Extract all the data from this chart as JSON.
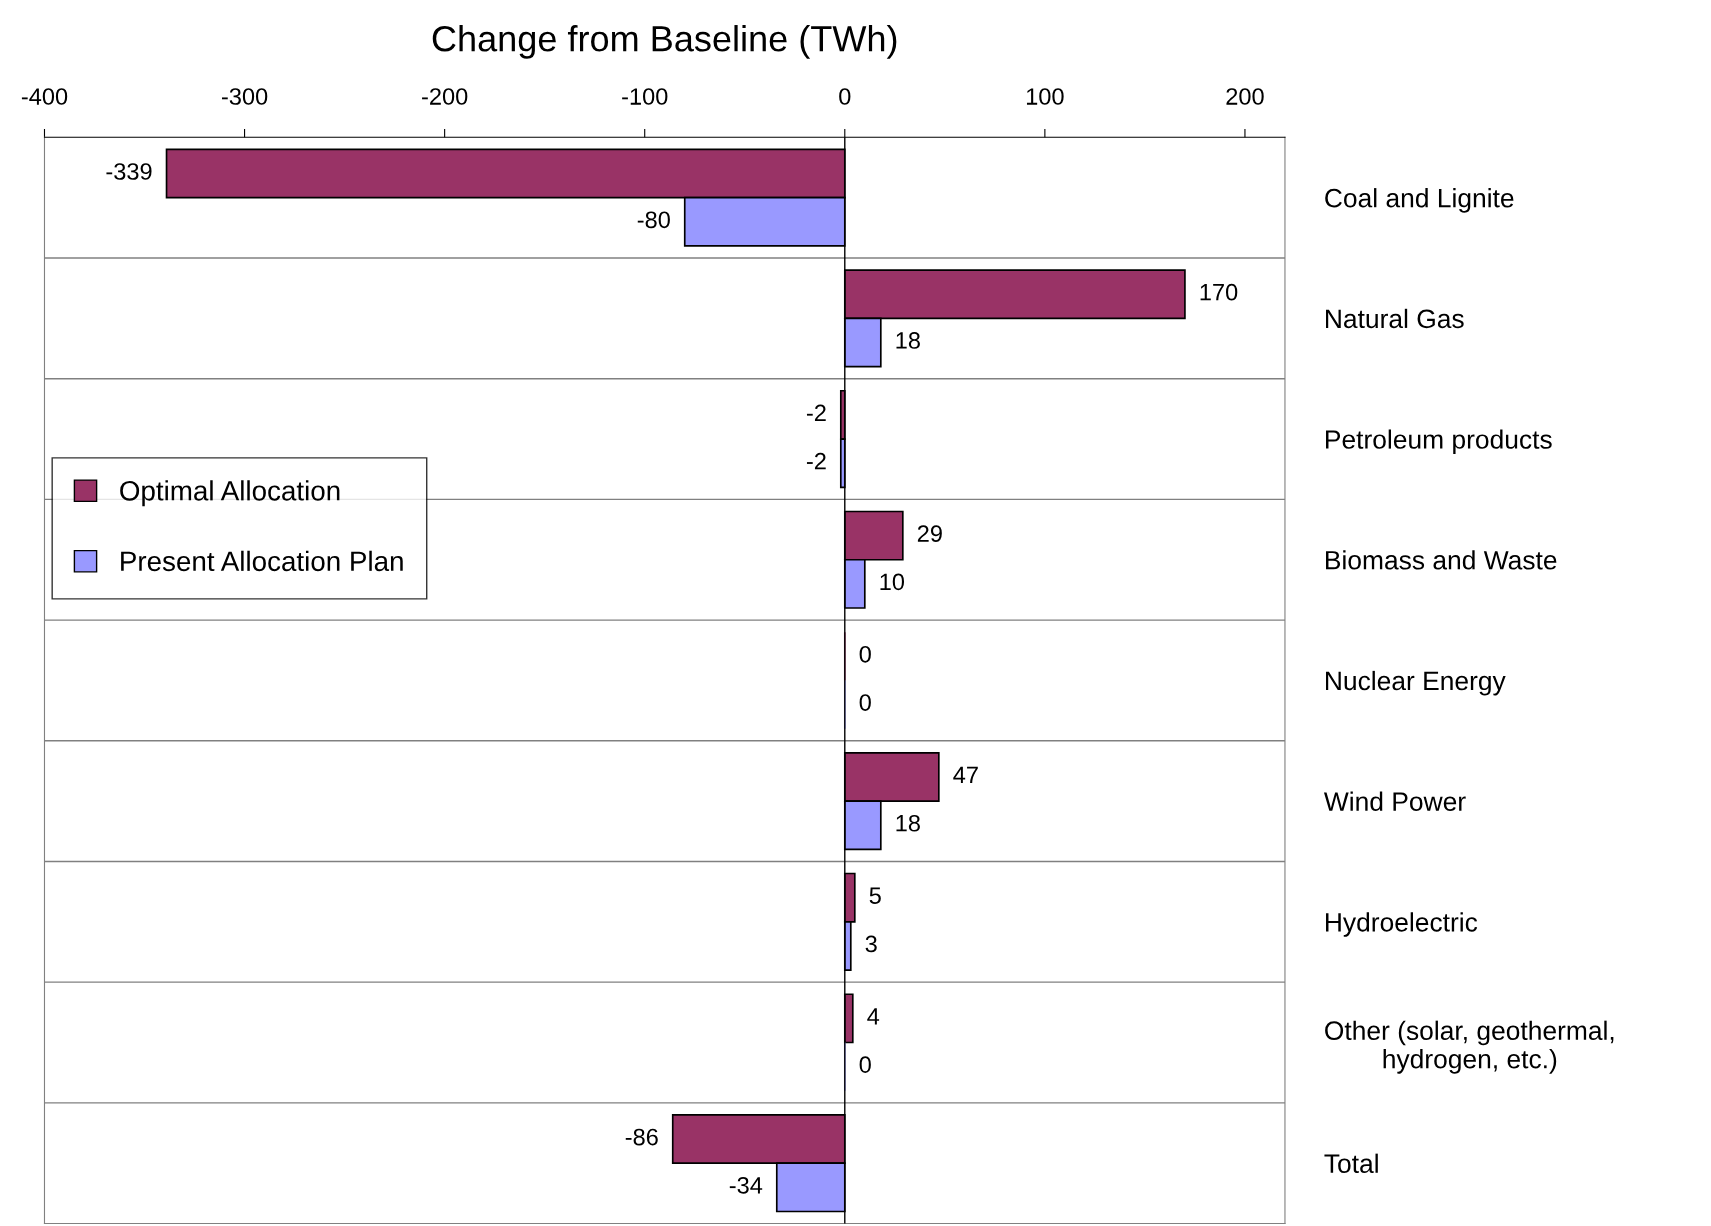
{
  "chart_data": {
    "type": "bar",
    "orientation": "horizontal",
    "title": "Change from Baseline (TWh)",
    "categories": [
      "Coal and Lignite",
      "Natural Gas",
      "Petroleum products",
      "Biomass and Waste",
      "Nuclear Energy",
      "Wind Power",
      "Hydroelectric",
      "Other (solar, geothermal,\nhydrogen, etc.)",
      "Total"
    ],
    "series": [
      {
        "name": "Optimal Allocation",
        "color": "#993366",
        "values": [
          -339,
          170,
          -2,
          29,
          0,
          47,
          5,
          4,
          -86
        ]
      },
      {
        "name": "Present Allocation Plan",
        "color": "#9999ff",
        "values": [
          -80,
          18,
          -2,
          10,
          0,
          18,
          3,
          0,
          -34
        ]
      }
    ],
    "xlim": [
      -400,
      220
    ],
    "xticks": [
      -400,
      -300,
      -200,
      -100,
      0,
      100,
      200
    ],
    "data_labels": true,
    "grid": "y",
    "legend": "left"
  }
}
